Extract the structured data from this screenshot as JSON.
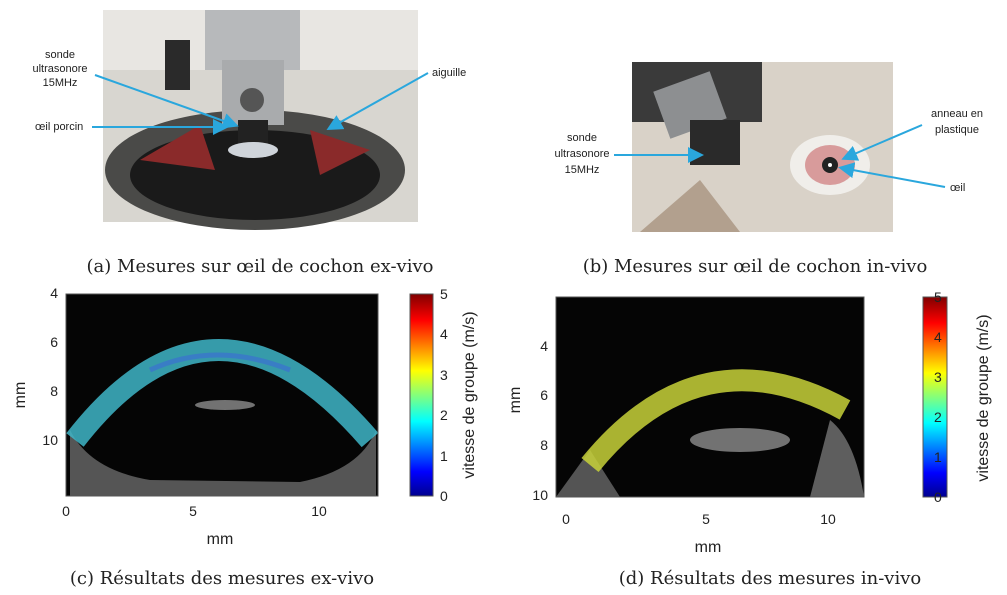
{
  "panels": [
    {
      "annotations": [
        {
          "lines": [
            "sonde",
            "ultrasonore",
            "15MHz"
          ]
        },
        {
          "lines": [
            "aiguille"
          ]
        },
        {
          "lines": [
            "œil porcin"
          ]
        }
      ],
      "caption": "(a) Mesures sur œil de cochon ex-vivo"
    },
    {
      "annotations": [
        {
          "lines": [
            "sonde",
            "ultrasonore",
            "15MHz"
          ]
        },
        {
          "lines": [
            "anneau en",
            "plastique"
          ]
        },
        {
          "lines": [
            "œil"
          ]
        }
      ],
      "caption": "(b) Mesures sur œil de cochon in-vivo"
    },
    {
      "xticks": [
        0,
        5,
        10
      ],
      "yticks": [
        4,
        6,
        8,
        10
      ],
      "xlabel": "mm",
      "ylabel": "mm",
      "colorbar": {
        "ticks": [
          0,
          1,
          2,
          3,
          4,
          5
        ],
        "label": "vitesse de groupe (m/s)"
      },
      "caption": "(c) Résultats des mesures ex-vivo"
    },
    {
      "xticks": [
        0,
        5,
        10
      ],
      "yticks": [
        4,
        6,
        8,
        10
      ],
      "xlabel": "mm",
      "ylabel": "mm",
      "colorbar": {
        "ticks": [
          0,
          1,
          2,
          3,
          4,
          5
        ],
        "label": "vitesse de groupe (m/s)"
      },
      "caption": "(d) Résultats des mesures in-vivo"
    }
  ]
}
